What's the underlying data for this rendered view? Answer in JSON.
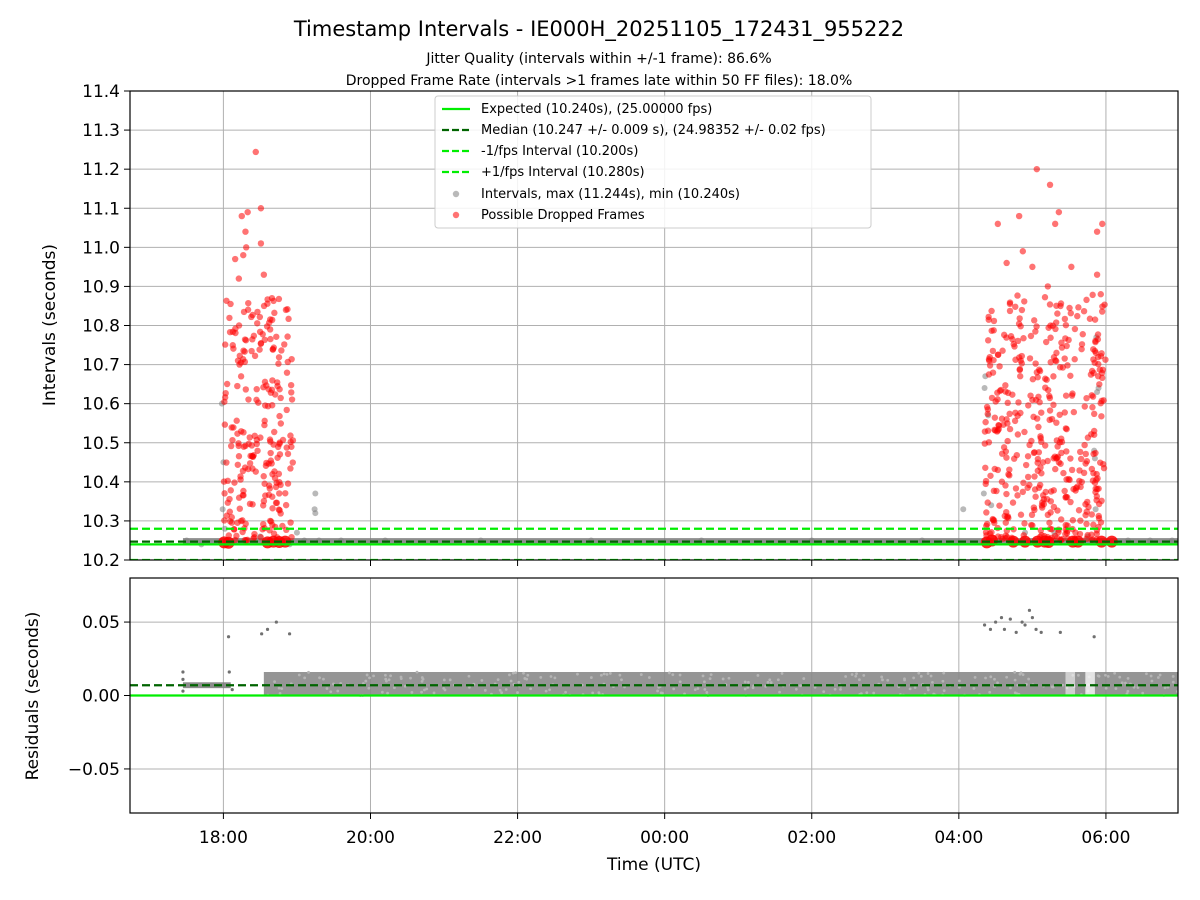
{
  "chart_data": {
    "title": "Timestamp Intervals - IE000H_20251105_172431_955222",
    "subtitle_lines": [
      "Jitter Quality (intervals within +/-1 frame): 86.6%",
      "Dropped Frame Rate (intervals >1 frames late within 50 FF files): 18.0%"
    ],
    "xlabel": "Time (UTC)",
    "x_tick_labels": [
      "18:00",
      "20:00",
      "22:00",
      "00:00",
      "02:00",
      "04:00",
      "06:00"
    ],
    "x_range_hours": [
      16.73,
      30.98
    ],
    "grid": true,
    "panels": [
      {
        "name": "intervals",
        "type": "scatter",
        "ylabel": "Intervals (seconds)",
        "ylim": [
          10.2,
          11.4
        ],
        "y_ticks": [
          10.2,
          10.3,
          10.4,
          10.5,
          10.6,
          10.7,
          10.8,
          10.9,
          11.0,
          11.1,
          11.2,
          11.3,
          11.4
        ],
        "y_tick_labels": [
          "10.2",
          "10.3",
          "10.4",
          "10.5",
          "10.6",
          "10.7",
          "10.8",
          "10.9",
          "11.0",
          "11.1",
          "11.2",
          "11.3",
          "11.4"
        ],
        "legend_position": "top-center",
        "reference_lines": [
          {
            "label": "Expected (10.240s), (25.00000 fps)",
            "value": 10.24,
            "color": "#00ee00",
            "style": "solid"
          },
          {
            "label": "Median (10.247 +/- 0.009 s), (24.98352 +/- 0.02 fps)",
            "value": 10.247,
            "color": "#006400",
            "style": "dashed"
          },
          {
            "label": "-1/fps Interval (10.200s)",
            "value": 10.2,
            "color": "#00ee00",
            "style": "dashed"
          },
          {
            "label": "+1/fps Interval (10.280s)",
            "value": 10.28,
            "color": "#00ee00",
            "style": "dashed"
          }
        ],
        "series": [
          {
            "label": "Intervals, max (11.244s), min (10.240s)",
            "color": "#808080",
            "max": 11.244,
            "min": 10.24
          },
          {
            "label": "Possible Dropped Frames",
            "color": "#ff0000"
          }
        ],
        "baseline_band": {
          "x_start": 17.45,
          "x_end": 30.98,
          "y_low": 10.24,
          "y_high": 10.256
        },
        "gray_points": [
          [
            17.98,
            10.6
          ],
          [
            18.0,
            10.45
          ],
          [
            18.02,
            10.28
          ],
          [
            17.99,
            10.33
          ],
          [
            19.25,
            10.37
          ],
          [
            19.24,
            10.33
          ],
          [
            19.25,
            10.32
          ],
          [
            18.72,
            10.25
          ],
          [
            19.0,
            10.27
          ],
          [
            18.5,
            10.26
          ],
          [
            18.9,
            10.24
          ],
          [
            19.1,
            10.25
          ],
          [
            19.3,
            10.25
          ],
          [
            19.6,
            10.25
          ],
          [
            20.2,
            10.25
          ],
          [
            21.5,
            10.25
          ],
          [
            23.0,
            10.25
          ],
          [
            24.5,
            10.25
          ],
          [
            26.0,
            10.25
          ],
          [
            27.5,
            10.25
          ],
          [
            28.06,
            10.33
          ],
          [
            28.35,
            10.64
          ],
          [
            28.36,
            10.67
          ],
          [
            28.34,
            10.37
          ],
          [
            28.4,
            10.57
          ],
          [
            28.44,
            10.34
          ],
          [
            29.85,
            10.46
          ],
          [
            29.84,
            10.48
          ],
          [
            29.88,
            10.63
          ],
          [
            29.87,
            10.77
          ],
          [
            29.86,
            10.33
          ],
          [
            29.9,
            10.64
          ],
          [
            28.9,
            10.27
          ],
          [
            29.3,
            10.27
          ],
          [
            29.75,
            10.26
          ],
          [
            30.3,
            10.25
          ],
          [
            30.6,
            10.25
          ],
          [
            30.9,
            10.25
          ],
          [
            17.5,
            10.25
          ],
          [
            17.7,
            10.24
          ]
        ],
        "red_clusters": [
          {
            "x_start": 18.0,
            "x_end": 18.95,
            "y_low": 10.25,
            "y_high": 10.87,
            "count": 240
          },
          {
            "x_start": 28.35,
            "x_end": 30.0,
            "y_low": 10.25,
            "y_high": 10.88,
            "count": 430
          }
        ],
        "red_outliers": [
          [
            18.44,
            11.244
          ],
          [
            18.25,
            11.08
          ],
          [
            18.33,
            11.09
          ],
          [
            18.51,
            11.1
          ],
          [
            18.3,
            11.04
          ],
          [
            18.51,
            11.01
          ],
          [
            18.31,
            11.0
          ],
          [
            18.27,
            10.98
          ],
          [
            18.16,
            10.97
          ],
          [
            18.21,
            10.92
          ],
          [
            18.55,
            10.93
          ],
          [
            18.66,
            10.87
          ],
          [
            18.85,
            10.84
          ],
          [
            28.53,
            11.06
          ],
          [
            28.82,
            11.08
          ],
          [
            29.06,
            11.2
          ],
          [
            29.24,
            11.16
          ],
          [
            29.31,
            11.06
          ],
          [
            29.36,
            11.09
          ],
          [
            29.88,
            11.04
          ],
          [
            29.95,
            11.06
          ],
          [
            28.65,
            10.96
          ],
          [
            28.87,
            10.99
          ],
          [
            29.0,
            10.95
          ],
          [
            29.53,
            10.95
          ],
          [
            29.88,
            10.93
          ],
          [
            29.93,
            10.88
          ],
          [
            29.21,
            10.9
          ]
        ],
        "red_big_points": [
          [
            18.01,
            10.245
          ],
          [
            18.07,
            10.244
          ],
          [
            18.6,
            10.245
          ],
          [
            18.68,
            10.247
          ],
          [
            18.76,
            10.246
          ],
          [
            18.84,
            10.247
          ],
          [
            28.38,
            10.245
          ],
          [
            28.45,
            10.25
          ],
          [
            28.74,
            10.247
          ],
          [
            28.9,
            10.247
          ],
          [
            29.07,
            10.247
          ],
          [
            29.17,
            10.247
          ],
          [
            29.22,
            10.246
          ],
          [
            29.55,
            10.247
          ],
          [
            29.62,
            10.247
          ],
          [
            29.94,
            10.247
          ],
          [
            30.08,
            10.247
          ]
        ]
      },
      {
        "name": "residuals",
        "type": "scatter",
        "ylabel": "Residuals (seconds)",
        "ylim": [
          -0.08,
          0.08
        ],
        "y_ticks": [
          -0.05,
          0.0,
          0.05
        ],
        "y_tick_labels": [
          "−0.05",
          "0.00",
          "0.05"
        ],
        "reference_lines": [
          {
            "value": 0.0,
            "color": "#00ee00",
            "style": "solid"
          },
          {
            "value": 0.007,
            "color": "#006400",
            "style": "dashed"
          }
        ],
        "points_color": "#808080",
        "band": {
          "x_start": 18.55,
          "x_end": 30.98,
          "y_low": 0.0,
          "y_high": 0.016
        },
        "early_band": {
          "x_start": 17.45,
          "x_end": 18.1,
          "y_low": 0.005,
          "y_high": 0.009
        },
        "outliers": [
          [
            18.07,
            0.04
          ],
          [
            18.52,
            0.042
          ],
          [
            18.6,
            0.045
          ],
          [
            18.72,
            0.05
          ],
          [
            18.9,
            0.042
          ],
          [
            17.45,
            0.016
          ],
          [
            17.45,
            0.011
          ],
          [
            17.45,
            0.003
          ],
          [
            18.08,
            0.016
          ],
          [
            18.12,
            0.004
          ],
          [
            28.35,
            0.048
          ],
          [
            28.43,
            0.045
          ],
          [
            28.5,
            0.05
          ],
          [
            28.58,
            0.053
          ],
          [
            28.62,
            0.045
          ],
          [
            28.7,
            0.052
          ],
          [
            28.78,
            0.043
          ],
          [
            28.86,
            0.05
          ],
          [
            28.9,
            0.048
          ],
          [
            28.96,
            0.058
          ],
          [
            29.0,
            0.053
          ],
          [
            29.05,
            0.045
          ],
          [
            29.12,
            0.043
          ],
          [
            29.38,
            0.043
          ],
          [
            29.84,
            0.04
          ]
        ]
      }
    ]
  }
}
